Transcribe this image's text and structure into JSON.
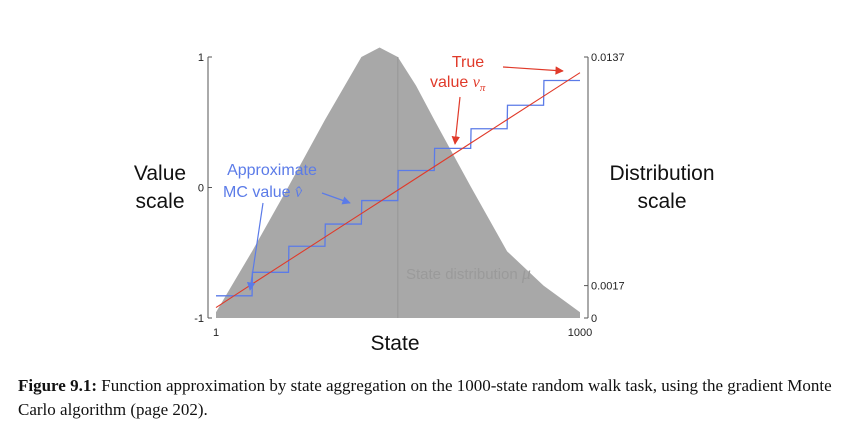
{
  "chart_data": {
    "type": "line",
    "xlabel": "State",
    "ylabel_left": "Value scale",
    "ylabel_right": "Distribution scale",
    "x_ticks": [
      "1",
      "1000"
    ],
    "xlim": [
      1,
      1000
    ],
    "y_left_ticks": [
      "1",
      "0",
      "-1"
    ],
    "ylim_left": [
      -1,
      1
    ],
    "y_right_ticks": [
      "0.0137",
      "0.0017",
      "0"
    ],
    "ylim_right": [
      0,
      0.0137
    ],
    "series": [
      {
        "name": "True value",
        "kind": "line",
        "color": "#e03a2a",
        "x": [
          1,
          100,
          200,
          300,
          400,
          500,
          600,
          700,
          800,
          900,
          1000
        ],
        "y": [
          -0.92,
          -0.74,
          -0.56,
          -0.38,
          -0.2,
          -0.02,
          0.16,
          0.34,
          0.52,
          0.7,
          0.88
        ]
      },
      {
        "name": "Approximate MC value",
        "kind": "step",
        "color": "#5b7be8",
        "bins": [
          [
            1,
            100
          ],
          [
            101,
            200
          ],
          [
            201,
            300
          ],
          [
            301,
            400
          ],
          [
            401,
            500
          ],
          [
            501,
            600
          ],
          [
            601,
            700
          ],
          [
            701,
            800
          ],
          [
            801,
            900
          ],
          [
            901,
            1000
          ]
        ],
        "values": [
          -0.83,
          -0.65,
          -0.45,
          -0.28,
          -0.1,
          0.13,
          0.3,
          0.45,
          0.63,
          0.82
        ]
      },
      {
        "name": "State distribution",
        "kind": "area",
        "color": "#a8a8a8",
        "x": [
          1,
          100,
          200,
          300,
          400,
          450,
          500,
          550,
          600,
          700,
          800,
          900,
          1000
        ],
        "y": [
          0.0003,
          0.0035,
          0.0069,
          0.0104,
          0.0137,
          0.0142,
          0.0137,
          0.0122,
          0.0104,
          0.0069,
          0.0035,
          0.0017,
          0.0003
        ]
      }
    ],
    "start_state_marker_x": 500,
    "annotations": {
      "true_value": "True\nvalue v_π",
      "mc_value": "Approximate\nMC value v̂",
      "state_distribution": "State distribution μ"
    },
    "colors": {
      "true_value": "#e03a2a",
      "mc_value": "#5b7be8",
      "distribution": "#a8a8a8",
      "axis": "#555555",
      "center_line": "#999999"
    }
  },
  "labels": {
    "value_scale_line1": "Value",
    "value_scale_line2": "scale",
    "dist_scale_line1": "Distribution",
    "dist_scale_line2": "scale",
    "state": "State",
    "true_line1": "True",
    "true_line2": "value ",
    "true_symbol": "v",
    "true_sub": "π",
    "mc_line1": "Approximate",
    "mc_line2": "MC value ",
    "mc_symbol": "v̂",
    "dist_label": "State distribution ",
    "dist_symbol": "μ"
  },
  "caption": {
    "label": "Figure 9.1:",
    "text": " Function approximation by state aggregation on the 1000-state random walk task, using the gradient Monte Carlo algorithm (page 202)."
  }
}
